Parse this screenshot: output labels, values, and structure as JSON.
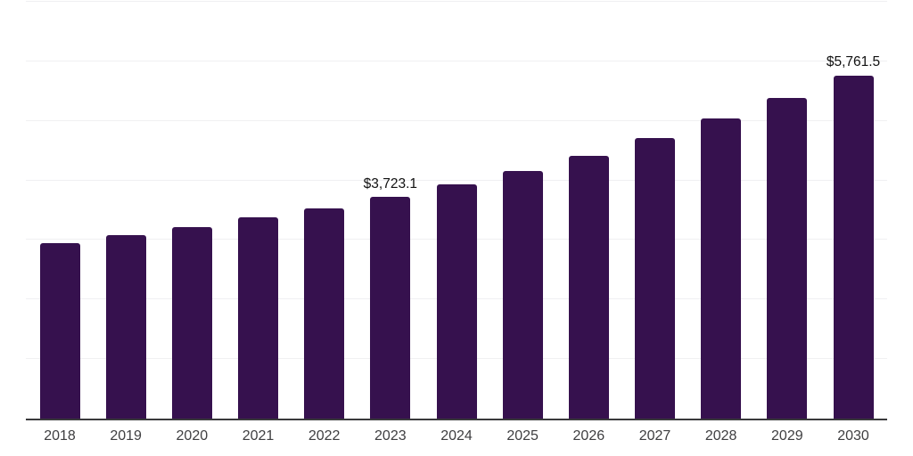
{
  "chart_data": {
    "type": "bar",
    "title": "",
    "xlabel": "",
    "ylabel": "",
    "categories": [
      "2018",
      "2019",
      "2020",
      "2021",
      "2022",
      "2023",
      "2024",
      "2025",
      "2026",
      "2027",
      "2028",
      "2029",
      "2030"
    ],
    "values": [
      2950,
      3075,
      3215,
      3375,
      3530,
      3723.1,
      3940,
      4160,
      4415,
      4710,
      5040,
      5385,
      5761.5
    ],
    "data_labels": [
      "",
      "",
      "",
      "",
      "",
      "$3,723.1",
      "",
      "",
      "",
      "",
      "",
      "",
      "$5,761.5"
    ],
    "ylim": [
      0,
      7000
    ],
    "gridline_step": 1000,
    "grid": true,
    "legend": "none",
    "y_axis_tick_labels_visible": false,
    "colors": {
      "bar": "#36114E",
      "axis_line": "#3A3A3C",
      "gridline": "#F0F0F2",
      "tick_text": "#3E3E40",
      "value_label_text": "#111111",
      "background": "#FFFFFF"
    }
  }
}
